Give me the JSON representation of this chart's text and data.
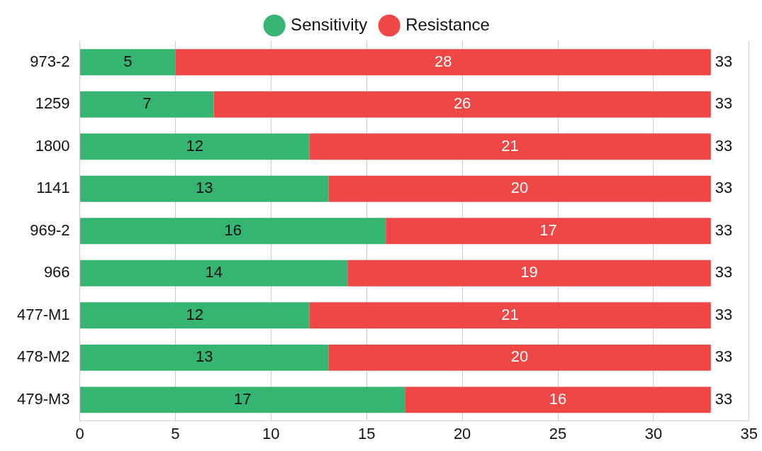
{
  "chart_data": {
    "type": "bar",
    "orientation": "horizontal",
    "stacked": true,
    "categories": [
      "973-2",
      "1259",
      "1800",
      "1141",
      "969-2",
      "966",
      "477-M1",
      "478-M2",
      "479-M3"
    ],
    "series": [
      {
        "name": "Sensitivity",
        "color": "#36b471",
        "values": [
          5,
          7,
          12,
          13,
          16,
          14,
          12,
          13,
          17
        ]
      },
      {
        "name": "Resistance",
        "color": "#ef4646",
        "values": [
          28,
          26,
          21,
          20,
          17,
          19,
          21,
          20,
          16
        ]
      }
    ],
    "totals": [
      "33",
      "33",
      "33",
      "33",
      "33",
      "33",
      "33",
      "33",
      "33"
    ],
    "xlim": [
      0,
      35
    ],
    "xticks": [
      0,
      5,
      10,
      15,
      20,
      25,
      30,
      35
    ],
    "data_labels": true,
    "grid": "x",
    "legend": "top"
  }
}
